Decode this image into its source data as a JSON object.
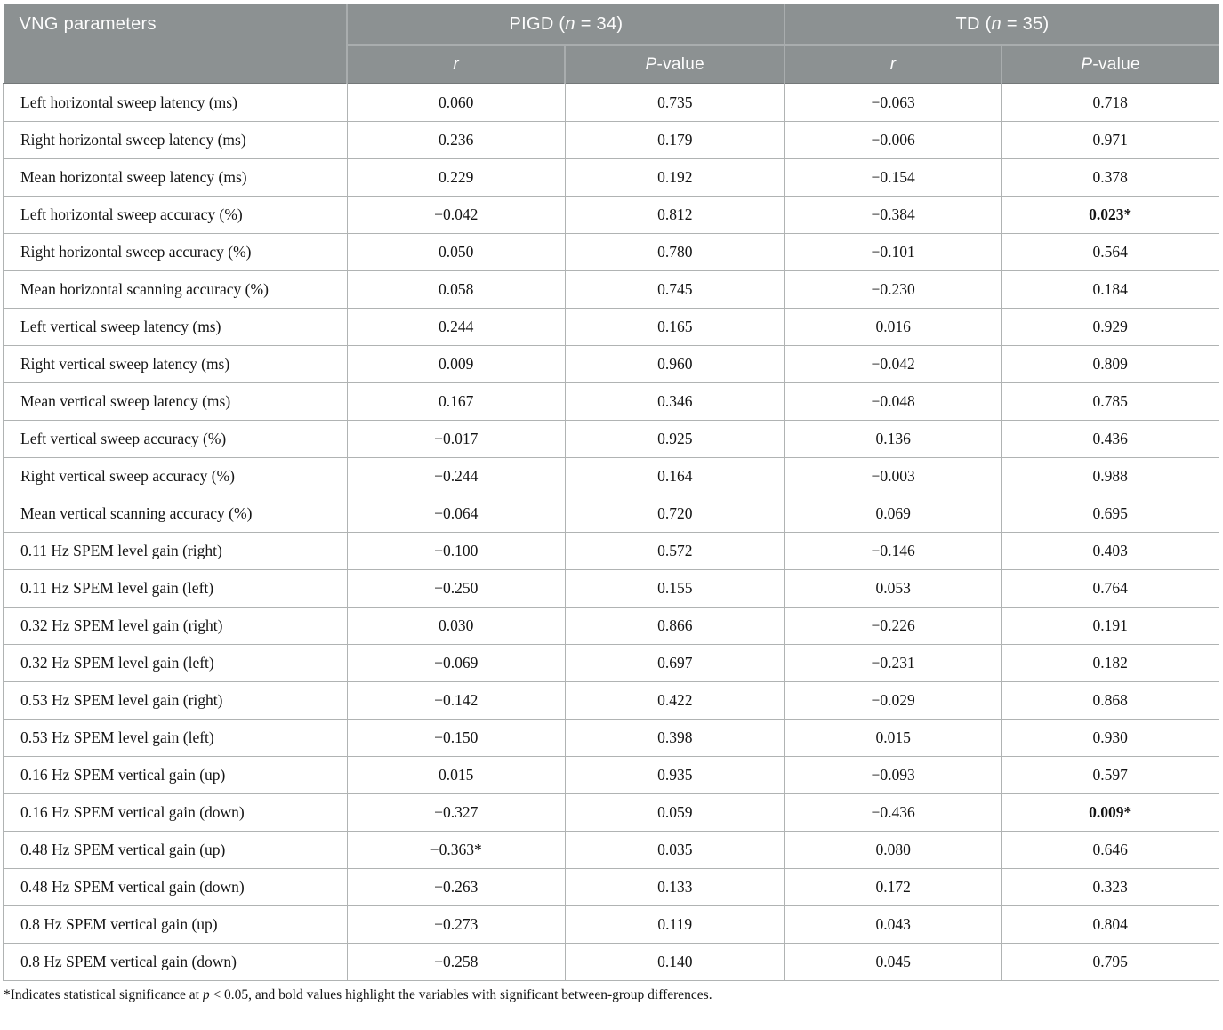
{
  "table": {
    "header": {
      "param_col": "VNG parameters",
      "pigd": {
        "prefix": "PIGD (",
        "italic": "n",
        "suffix": " = 34)"
      },
      "td": {
        "prefix": "TD (",
        "italic": "n",
        "suffix": " = 35)"
      },
      "r_label": "r",
      "p_label": {
        "italic": "P",
        "suffix": "-value"
      }
    },
    "columns": [
      "pigd-r",
      "pigd-p-value",
      "td-r",
      "td-p-value"
    ],
    "rows": [
      {
        "label": "Left horizontal sweep latency (ms)",
        "values": [
          "0.060",
          "0.735",
          "−0.063",
          "0.718"
        ],
        "bold": []
      },
      {
        "label": "Right horizontal sweep latency (ms)",
        "values": [
          "0.236",
          "0.179",
          "−0.006",
          "0.971"
        ],
        "bold": []
      },
      {
        "label": "Mean horizontal sweep latency (ms)",
        "values": [
          "0.229",
          "0.192",
          "−0.154",
          "0.378"
        ],
        "bold": []
      },
      {
        "label": "Left horizontal sweep accuracy (%)",
        "values": [
          "−0.042",
          "0.812",
          "−0.384",
          "0.023*"
        ],
        "bold": [
          3
        ]
      },
      {
        "label": "Right horizontal sweep accuracy (%)",
        "values": [
          "0.050",
          "0.780",
          "−0.101",
          "0.564"
        ],
        "bold": []
      },
      {
        "label": "Mean horizontal scanning accuracy (%)",
        "values": [
          "0.058",
          "0.745",
          "−0.230",
          "0.184"
        ],
        "bold": []
      },
      {
        "label": "Left vertical sweep latency (ms)",
        "values": [
          "0.244",
          "0.165",
          "0.016",
          "0.929"
        ],
        "bold": []
      },
      {
        "label": "Right vertical sweep latency (ms)",
        "values": [
          "0.009",
          "0.960",
          "−0.042",
          "0.809"
        ],
        "bold": []
      },
      {
        "label": "Mean vertical sweep latency (ms)",
        "values": [
          "0.167",
          "0.346",
          "−0.048",
          "0.785"
        ],
        "bold": []
      },
      {
        "label": "Left vertical sweep accuracy (%)",
        "values": [
          "−0.017",
          "0.925",
          "0.136",
          "0.436"
        ],
        "bold": []
      },
      {
        "label": "Right vertical sweep accuracy (%)",
        "values": [
          "−0.244",
          "0.164",
          "−0.003",
          "0.988"
        ],
        "bold": []
      },
      {
        "label": "Mean vertical scanning accuracy (%)",
        "values": [
          "−0.064",
          "0.720",
          "0.069",
          "0.695"
        ],
        "bold": []
      },
      {
        "label": "0.11 Hz SPEM level gain (right)",
        "values": [
          "−0.100",
          "0.572",
          "−0.146",
          "0.403"
        ],
        "bold": []
      },
      {
        "label": "0.11 Hz SPEM level gain (left)",
        "values": [
          "−0.250",
          "0.155",
          "0.053",
          "0.764"
        ],
        "bold": []
      },
      {
        "label": "0.32 Hz SPEM level gain (right)",
        "values": [
          "0.030",
          "0.866",
          "−0.226",
          "0.191"
        ],
        "bold": []
      },
      {
        "label": "0.32 Hz SPEM level gain (left)",
        "values": [
          "−0.069",
          "0.697",
          "−0.231",
          "0.182"
        ],
        "bold": []
      },
      {
        "label": "0.53 Hz SPEM level gain (right)",
        "values": [
          "−0.142",
          "0.422",
          "−0.029",
          "0.868"
        ],
        "bold": []
      },
      {
        "label": "0.53 Hz SPEM level gain (left)",
        "values": [
          "−0.150",
          "0.398",
          "0.015",
          "0.930"
        ],
        "bold": []
      },
      {
        "label": "0.16 Hz SPEM vertical gain (up)",
        "values": [
          "0.015",
          "0.935",
          "−0.093",
          "0.597"
        ],
        "bold": []
      },
      {
        "label": "0.16 Hz SPEM vertical gain (down)",
        "values": [
          "−0.327",
          "0.059",
          "−0.436",
          "0.009*"
        ],
        "bold": [
          3
        ]
      },
      {
        "label": "0.48 Hz SPEM vertical gain (up)",
        "values": [
          "−0.363*",
          "0.035",
          "0.080",
          "0.646"
        ],
        "bold": []
      },
      {
        "label": "0.48 Hz SPEM vertical gain (down)",
        "values": [
          "−0.263",
          "0.133",
          "0.172",
          "0.323"
        ],
        "bold": []
      },
      {
        "label": "0.8 Hz SPEM vertical gain (up)",
        "values": [
          "−0.273",
          "0.119",
          "0.043",
          "0.804"
        ],
        "bold": []
      },
      {
        "label": "0.8 Hz SPEM vertical gain (down)",
        "values": [
          "−0.258",
          "0.140",
          "0.045",
          "0.795"
        ],
        "bold": []
      }
    ]
  },
  "footnote": {
    "star": "*",
    "part1": "Indicates statistical significance at ",
    "italic_p": "p",
    "part2": " < 0.05, and bold values highlight the variables with significant between-group differences."
  },
  "colors": {
    "header_bg": "#8c9192",
    "header_divider": "#a9adae",
    "header_bottom": "#747879",
    "body_border": "#b0b3b3",
    "text": "#141414",
    "header_text": "#fdfdfd"
  }
}
